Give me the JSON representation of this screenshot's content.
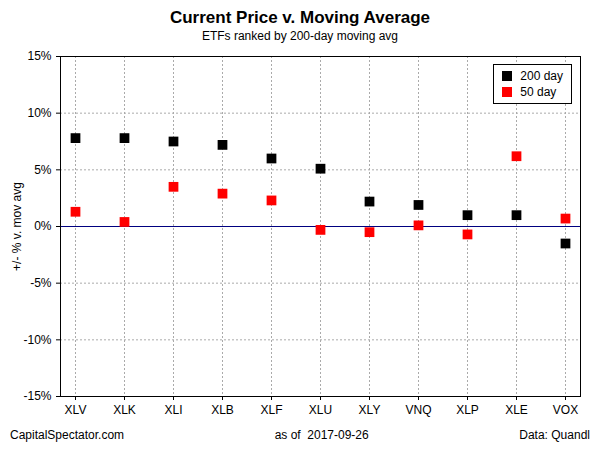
{
  "chart_data": {
    "type": "scatter",
    "title": "Current Price v. Moving Average",
    "subtitle": "ETFs ranked by 200-day moving avg",
    "y_label": "+/- % v. mov avg",
    "categories": [
      "XLV",
      "XLK",
      "XLI",
      "XLB",
      "XLF",
      "XLU",
      "XLY",
      "VNQ",
      "XLP",
      "XLE",
      "VOX"
    ],
    "series": [
      {
        "name": "200 day",
        "color": "#000000",
        "marker": "square",
        "values": [
          7.8,
          7.8,
          7.5,
          7.2,
          6.0,
          5.1,
          2.2,
          1.9,
          1.0,
          1.0,
          -1.5
        ]
      },
      {
        "name": "50 day",
        "color": "#ff0000",
        "marker": "square",
        "values": [
          1.3,
          0.4,
          3.5,
          2.9,
          2.3,
          -0.3,
          -0.5,
          0.1,
          -0.7,
          6.2,
          0.7
        ]
      }
    ],
    "ylim": [
      -15,
      15
    ],
    "yticks": [
      {
        "value": -15,
        "label": "-15%"
      },
      {
        "value": -10,
        "label": "-10%"
      },
      {
        "value": -5,
        "label": "-5%"
      },
      {
        "value": 0,
        "label": "0%"
      },
      {
        "value": 5,
        "label": "5%"
      },
      {
        "value": 10,
        "label": "10%"
      },
      {
        "value": 15,
        "label": "15%"
      }
    ],
    "hlines": [
      {
        "value": 0,
        "color": "#000080"
      }
    ],
    "grid": true,
    "legend": "top-right",
    "footer": [
      "CapitalSpectator.com",
      "as of  2017-09-26",
      "Data: Quandl"
    ]
  }
}
